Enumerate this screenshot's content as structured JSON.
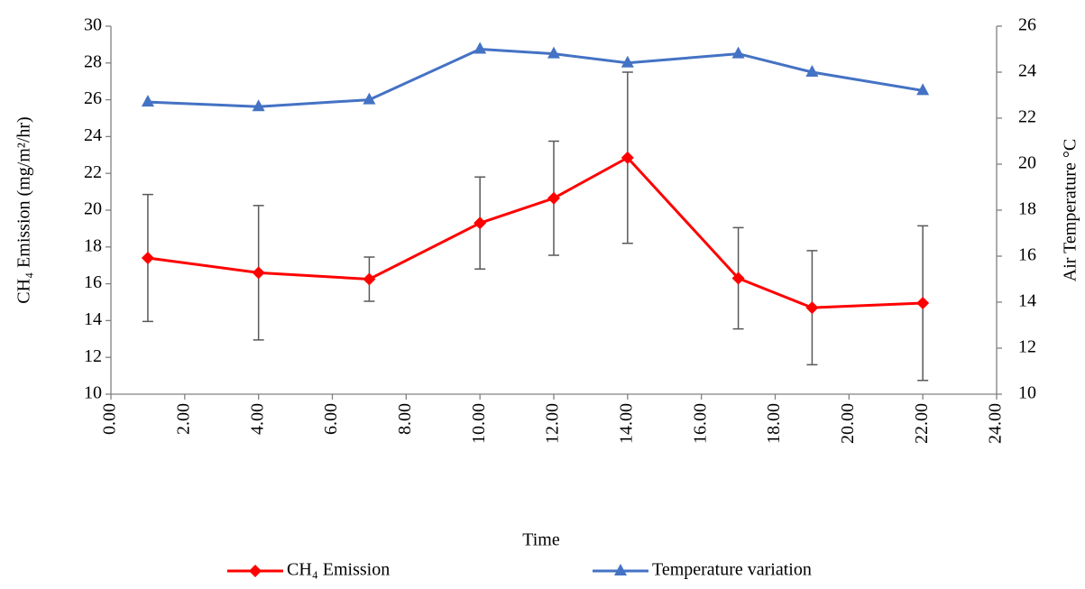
{
  "chart_data": {
    "type": "line",
    "xlabel": "Time",
    "ylabel": "CH₄ Emission (mg/m²/hr)",
    "y2label": "Air Temperature °C",
    "xlim": [
      0,
      24
    ],
    "xticks": [
      {
        "value": 0,
        "label": "0.00"
      },
      {
        "value": 2,
        "label": "2.00"
      },
      {
        "value": 4,
        "label": "4.00"
      },
      {
        "value": 6,
        "label": "6.00"
      },
      {
        "value": 8,
        "label": "8.00"
      },
      {
        "value": 10,
        "label": "10.00"
      },
      {
        "value": 12,
        "label": "12.00"
      },
      {
        "value": 14,
        "label": "14.00"
      },
      {
        "value": 16,
        "label": "16.00"
      },
      {
        "value": 18,
        "label": "18.00"
      },
      {
        "value": 20,
        "label": "20.00"
      },
      {
        "value": 22,
        "label": "22.00"
      },
      {
        "value": 24,
        "label": "24.00"
      }
    ],
    "ylim": [
      10,
      30
    ],
    "yticks": [
      10,
      12,
      14,
      16,
      18,
      20,
      22,
      24,
      26,
      28,
      30
    ],
    "y2lim": [
      10,
      26
    ],
    "y2ticks": [
      10,
      12,
      14,
      16,
      18,
      20,
      22,
      24,
      26
    ],
    "x": [
      1,
      4,
      7,
      10,
      12,
      14,
      17,
      19,
      22
    ],
    "series": [
      {
        "name": "CH₄ Emission",
        "color": "#ff0000",
        "marker": "diamond",
        "values": [
          17.4,
          16.6,
          16.25,
          19.3,
          20.65,
          22.85,
          16.3,
          14.7,
          14.95
        ],
        "errors": [
          3.45,
          3.65,
          1.2,
          2.5,
          3.1,
          4.65,
          2.75,
          3.1,
          4.2
        ]
      },
      {
        "name": "Temperature variation",
        "color": "#4472c4",
        "marker": "triangle",
        "axis": "y2",
        "values": [
          22.7,
          22.5,
          22.8,
          25.0,
          24.8,
          24.4,
          24.8,
          24.0,
          23.2
        ]
      }
    ]
  }
}
